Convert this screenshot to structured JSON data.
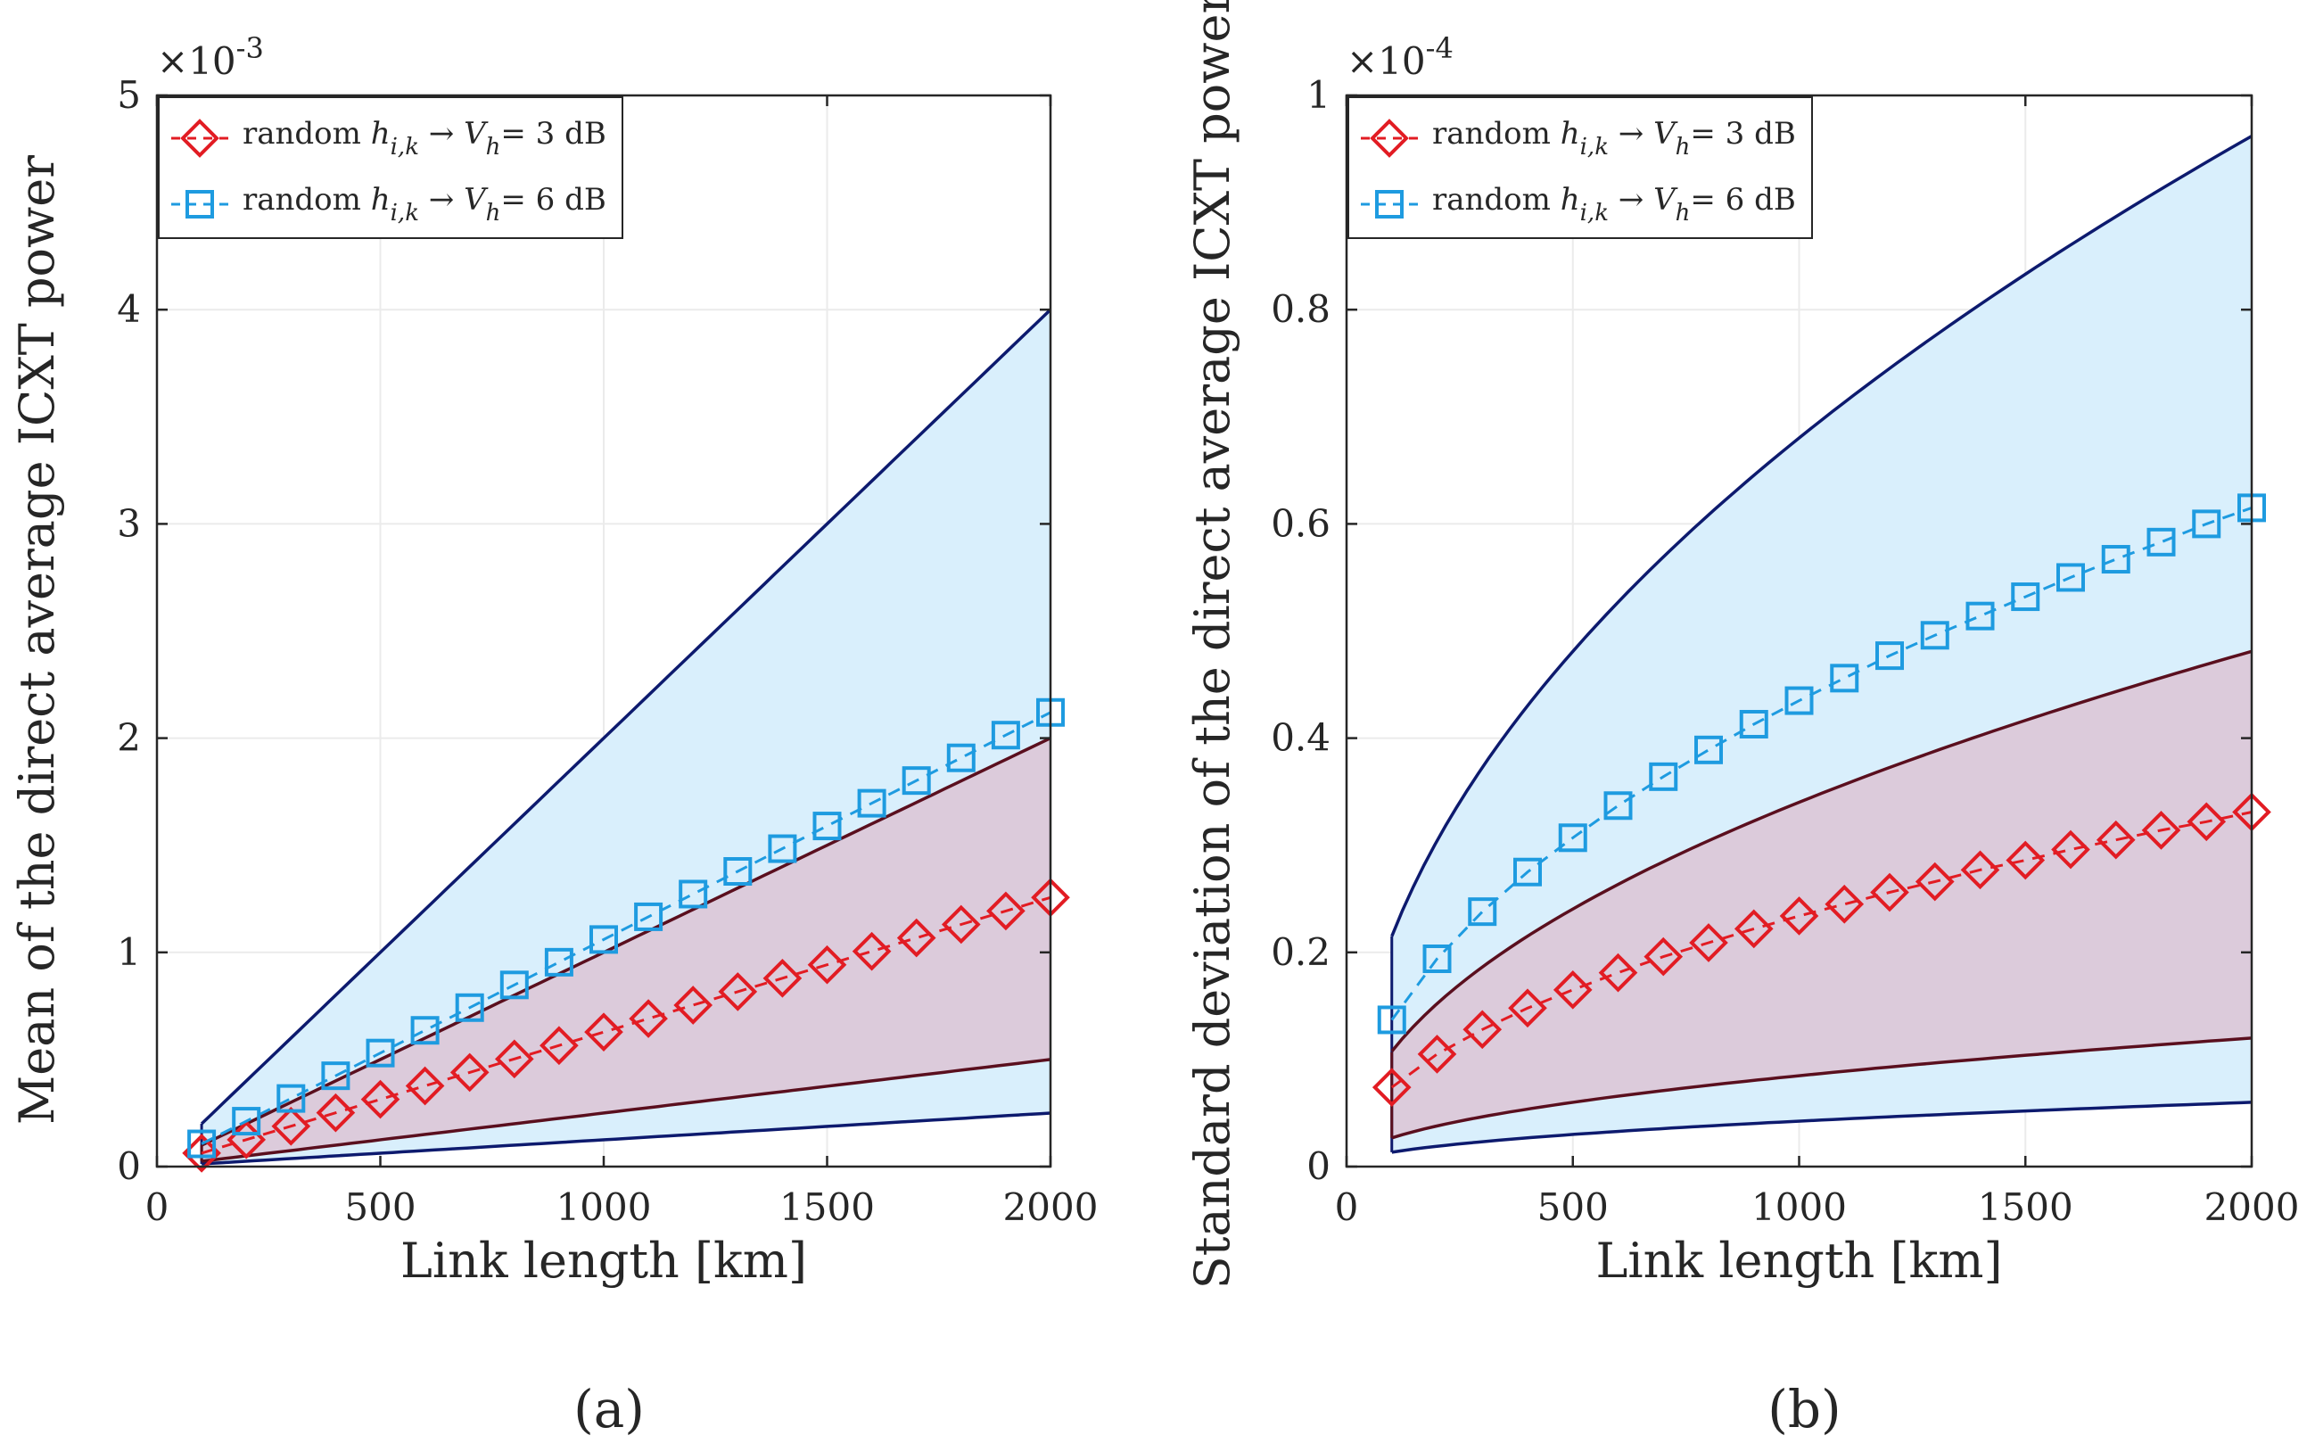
{
  "chart_data": [
    {
      "type": "line",
      "panel_label": "(a)",
      "xlabel": "Link length [km]",
      "ylabel": "Mean of the direct average ICXT power",
      "y_exponent": "×10-3",
      "y_exponent_base": "×10",
      "y_exponent_power": "-3",
      "xlim": [
        0,
        2000
      ],
      "ylim": [
        0,
        5
      ],
      "xticks": [
        "0",
        "500",
        "1000",
        "1500",
        "2000"
      ],
      "yticks": [
        "0",
        "1",
        "2",
        "3",
        "4",
        "5"
      ],
      "x": [
        100,
        200,
        300,
        400,
        500,
        600,
        700,
        800,
        900,
        1000,
        1100,
        1200,
        1300,
        1400,
        1500,
        1600,
        1700,
        1800,
        1900,
        2000
      ],
      "grid": true,
      "legend_position": "top-left",
      "legend": [
        {
          "prefix": "random ",
          "h": "h",
          "sub": "i,k",
          "arrow": " → ",
          "v": "V",
          "vsub": "h",
          "suffix": "= 3 dB",
          "color": "#e21c23",
          "marker": "diamond"
        },
        {
          "prefix": "random ",
          "h": "h",
          "sub": "i,k",
          "arrow": " → ",
          "v": "V",
          "vsub": "h",
          "suffix": "= 6 dB",
          "color": "#1e9be0",
          "marker": "square"
        }
      ],
      "series": [
        {
          "name": "random h_i,k → V_h= 3 dB",
          "color": "#e21c23",
          "marker": "diamond",
          "values": [
            0.0628,
            0.1256,
            0.1884,
            0.2512,
            0.314,
            0.3768,
            0.4396,
            0.5024,
            0.5652,
            0.628,
            0.6908,
            0.7536,
            0.8164,
            0.8792,
            0.942,
            1.0048,
            1.0676,
            1.1304,
            1.1932,
            1.256
          ]
        },
        {
          "name": "random h_i,k → V_h= 6 dB",
          "color": "#1e9be0",
          "marker": "square",
          "values": [
            0.106,
            0.212,
            0.318,
            0.424,
            0.53,
            0.636,
            0.742,
            0.848,
            0.954,
            1.06,
            1.166,
            1.272,
            1.378,
            1.484,
            1.59,
            1.696,
            1.802,
            1.908,
            2.014,
            2.12
          ]
        }
      ],
      "bands": [
        {
          "name": "6 dB range",
          "fill": "#d9effc",
          "edge": "#0d1a6e",
          "lower": [
            0.0125,
            2000,
            0.25
          ],
          "lower_values": [
            0.0125,
            0.25
          ],
          "upper_values": [
            0.2,
            4.0
          ]
        },
        {
          "name": "3 dB range",
          "fill": "#dccbdb",
          "edge": "#5a0f1e",
          "lower_values": [
            0.025,
            0.5
          ],
          "upper_values": [
            0.1,
            2.0
          ]
        }
      ]
    },
    {
      "type": "line",
      "panel_label": "(b)",
      "xlabel": "Link length [km]",
      "ylabel": "Standard deviation of the direct average ICXT power",
      "y_exponent": "×10-4",
      "y_exponent_base": "×10",
      "y_exponent_power": "-4",
      "xlim": [
        0,
        2000
      ],
      "ylim": [
        0,
        1
      ],
      "xticks": [
        "0",
        "500",
        "1000",
        "1500",
        "2000"
      ],
      "yticks": [
        "0",
        "0.2",
        "0.4",
        "0.6",
        "0.8",
        "1"
      ],
      "x": [
        100,
        200,
        300,
        400,
        500,
        600,
        700,
        800,
        900,
        1000,
        1100,
        1200,
        1300,
        1400,
        1500,
        1600,
        1700,
        1800,
        1900,
        2000
      ],
      "grid": true,
      "legend_position": "top-left",
      "legend": [
        {
          "prefix": "random ",
          "h": "h",
          "sub": "i,k",
          "arrow": " → ",
          "v": "V",
          "vsub": "h",
          "suffix": "= 3 dB",
          "color": "#e21c23",
          "marker": "diamond"
        },
        {
          "prefix": "random ",
          "h": "h",
          "sub": "i,k",
          "arrow": " → ",
          "v": "V",
          "vsub": "h",
          "suffix": "= 6 dB",
          "color": "#1e9be0",
          "marker": "square"
        }
      ],
      "series": [
        {
          "name": "random h_i,k → V_h= 3 dB",
          "color": "#e21c23",
          "marker": "diamond",
          "values": [
            0.074,
            0.105,
            0.128,
            0.148,
            0.165,
            0.181,
            0.196,
            0.209,
            0.222,
            0.234,
            0.245,
            0.256,
            0.266,
            0.277,
            0.286,
            0.296,
            0.305,
            0.314,
            0.322,
            0.331
          ]
        },
        {
          "name": "random h_i,k → V_h= 6 dB",
          "color": "#1e9be0",
          "marker": "square",
          "values": [
            0.137,
            0.194,
            0.238,
            0.275,
            0.307,
            0.337,
            0.364,
            0.389,
            0.413,
            0.435,
            0.456,
            0.477,
            0.496,
            0.514,
            0.532,
            0.55,
            0.567,
            0.583,
            0.6,
            0.615
          ]
        }
      ],
      "bands": [
        {
          "name": "6 dB range",
          "fill": "#d9effc",
          "edge": "#0d1a6e",
          "lower_values": [
            0.0134,
            0.06
          ],
          "upper_values": [
            0.215,
            0.962
          ]
        },
        {
          "name": "3 dB range",
          "fill": "#dccbdb",
          "edge": "#5a0f1e",
          "lower_values": [
            0.0268,
            0.12
          ],
          "upper_values": [
            0.107,
            0.481
          ]
        }
      ]
    }
  ]
}
